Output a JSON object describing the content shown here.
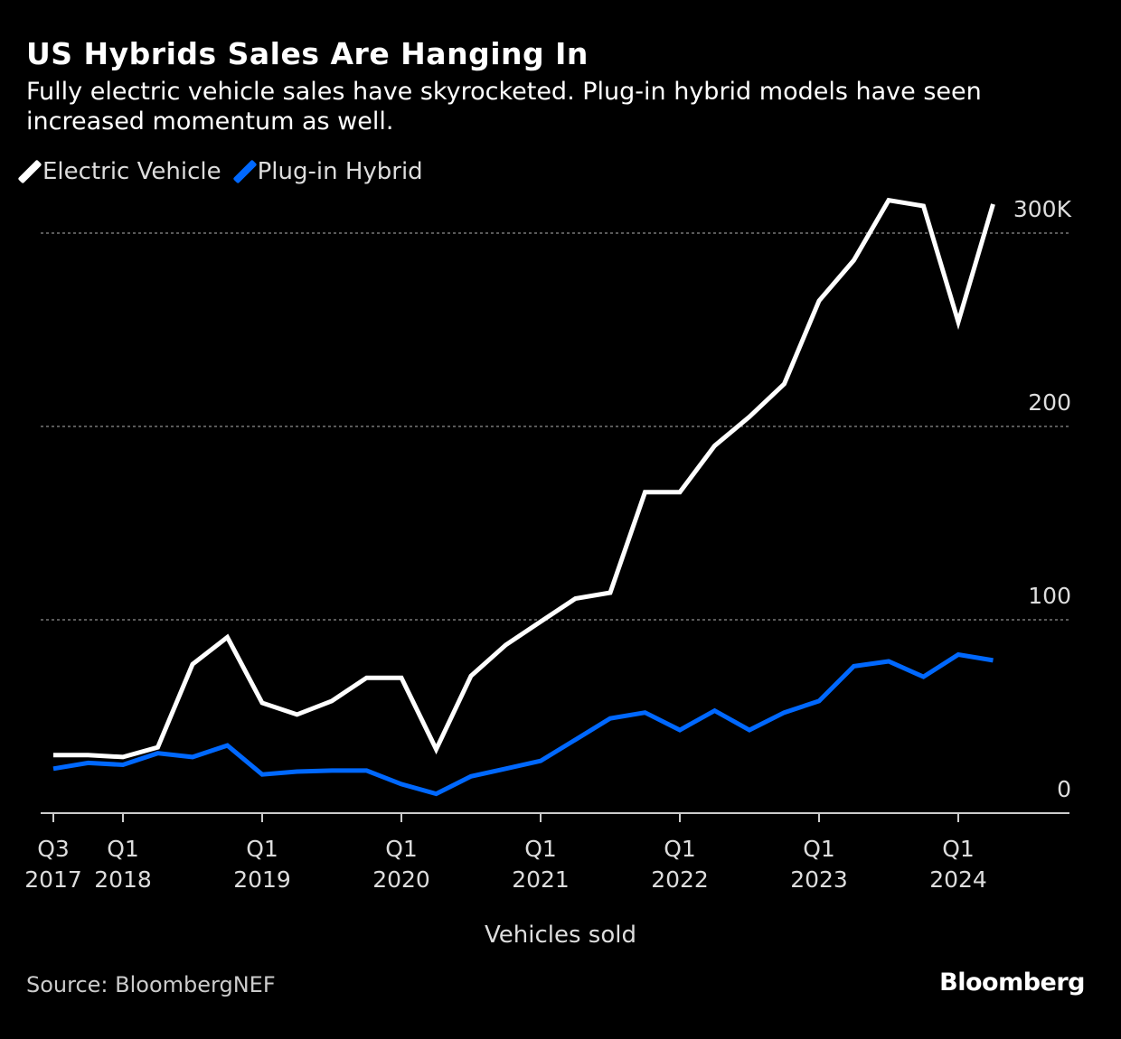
{
  "chart_data": {
    "type": "line",
    "title": "US Hybrids Sales Are Hanging In",
    "subtitle": "Fully electric vehicle sales have skyrocketed. Plug-in hybrid models have seen increased momentum as well.",
    "xlabel": "Vehicles sold",
    "ylabel": "",
    "ylim": [
      0,
      330
    ],
    "y_ticks": [
      0,
      100,
      200,
      300
    ],
    "y_tick_labels": [
      "0",
      "100",
      "200",
      "300K"
    ],
    "x_tick_labels": [
      {
        "index": 0,
        "line1": "Q3",
        "line2": "2017"
      },
      {
        "index": 2,
        "line1": "Q1",
        "line2": "2018"
      },
      {
        "index": 6,
        "line1": "Q1",
        "line2": "2019"
      },
      {
        "index": 10,
        "line1": "Q1",
        "line2": "2020"
      },
      {
        "index": 14,
        "line1": "Q1",
        "line2": "2021"
      },
      {
        "index": 18,
        "line1": "Q1",
        "line2": "2022"
      },
      {
        "index": 22,
        "line1": "Q1",
        "line2": "2023"
      },
      {
        "index": 26,
        "line1": "Q1",
        "line2": "2024"
      }
    ],
    "x": [
      "Q3 2017",
      "Q4 2017",
      "Q1 2018",
      "Q2 2018",
      "Q3 2018",
      "Q4 2018",
      "Q1 2019",
      "Q2 2019",
      "Q3 2019",
      "Q4 2019",
      "Q1 2020",
      "Q2 2020",
      "Q3 2020",
      "Q4 2020",
      "Q1 2021",
      "Q2 2021",
      "Q3 2021",
      "Q4 2021",
      "Q1 2022",
      "Q2 2022",
      "Q3 2022",
      "Q4 2022",
      "Q1 2023",
      "Q2 2023",
      "Q3 2023",
      "Q4 2023",
      "Q1 2024",
      "Q2 2024"
    ],
    "series": [
      {
        "name": "Electric Vehicle",
        "color": "#ffffff",
        "values": [
          30,
          30,
          29,
          34,
          77,
          91,
          57,
          51,
          58,
          70,
          70,
          33,
          71,
          87,
          99,
          111,
          114,
          166,
          166,
          190,
          205,
          222,
          265,
          286,
          317,
          314,
          254,
          315
        ]
      },
      {
        "name": "Plug-in Hybrid",
        "color": "#0068ff",
        "values": [
          23,
          26,
          25,
          31,
          29,
          35,
          20,
          21.5,
          22,
          22,
          15,
          10,
          19,
          23,
          27,
          38,
          49,
          52,
          43,
          53,
          43,
          52,
          58,
          76,
          78.5,
          70.5,
          82,
          79
        ]
      }
    ],
    "grid": true,
    "legend_position": "top-left"
  },
  "footer": {
    "source": "Source: BloombergNEF",
    "logo": "Bloomberg"
  }
}
